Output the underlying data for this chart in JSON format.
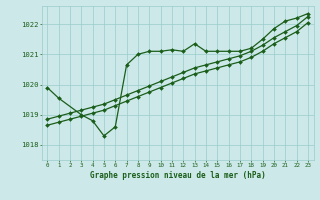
{
  "bg_color": "#cce8e8",
  "grid_color": "#99cccc",
  "line_color": "#1a5e1a",
  "text_color": "#1a5e1a",
  "xlabel": "Graphe pression niveau de la mer (hPa)",
  "xlim": [
    -0.5,
    23.5
  ],
  "ylim": [
    1017.5,
    1022.6
  ],
  "yticks": [
    1018,
    1019,
    1020,
    1021,
    1022
  ],
  "xtick_labels": [
    "0",
    "1",
    "2",
    "3",
    "4",
    "5",
    "6",
    "7",
    "8",
    "9",
    "10",
    "11",
    "12",
    "13",
    "14",
    "15",
    "16",
    "17",
    "18",
    "19",
    "20",
    "21",
    "22",
    "23"
  ],
  "wavy_x": [
    0,
    1,
    3,
    4,
    5,
    6,
    7,
    8,
    9,
    10,
    11,
    12,
    13,
    14,
    15,
    16,
    17,
    18,
    19,
    20,
    21,
    22,
    23
  ],
  "wavy_y": [
    1019.9,
    1019.55,
    1019.0,
    1018.8,
    1018.3,
    1018.6,
    1020.65,
    1021.0,
    1021.1,
    1021.1,
    1021.15,
    1021.1,
    1021.35,
    1021.1,
    1021.1,
    1021.1,
    1021.1,
    1021.2,
    1021.5,
    1021.85,
    1022.1,
    1022.2,
    1022.35
  ],
  "line2_x": [
    0,
    1,
    2,
    3,
    4,
    5,
    6,
    7,
    8,
    9,
    10,
    11,
    12,
    13,
    14,
    15,
    16,
    17,
    18,
    19,
    20,
    21,
    22,
    23
  ],
  "line2_y": [
    1018.85,
    1018.95,
    1019.05,
    1019.15,
    1019.25,
    1019.35,
    1019.5,
    1019.65,
    1019.8,
    1019.95,
    1020.1,
    1020.25,
    1020.4,
    1020.55,
    1020.65,
    1020.75,
    1020.85,
    1020.95,
    1021.1,
    1021.3,
    1021.55,
    1021.75,
    1021.95,
    1022.25
  ],
  "line3_x": [
    0,
    1,
    2,
    3,
    4,
    5,
    6,
    7,
    8,
    9,
    10,
    11,
    12,
    13,
    14,
    15,
    16,
    17,
    18,
    19,
    20,
    21,
    22,
    23
  ],
  "line3_y": [
    1018.65,
    1018.75,
    1018.85,
    1018.95,
    1019.05,
    1019.15,
    1019.3,
    1019.45,
    1019.6,
    1019.75,
    1019.9,
    1020.05,
    1020.2,
    1020.35,
    1020.45,
    1020.55,
    1020.65,
    1020.75,
    1020.9,
    1021.1,
    1021.35,
    1021.55,
    1021.75,
    1022.05
  ]
}
